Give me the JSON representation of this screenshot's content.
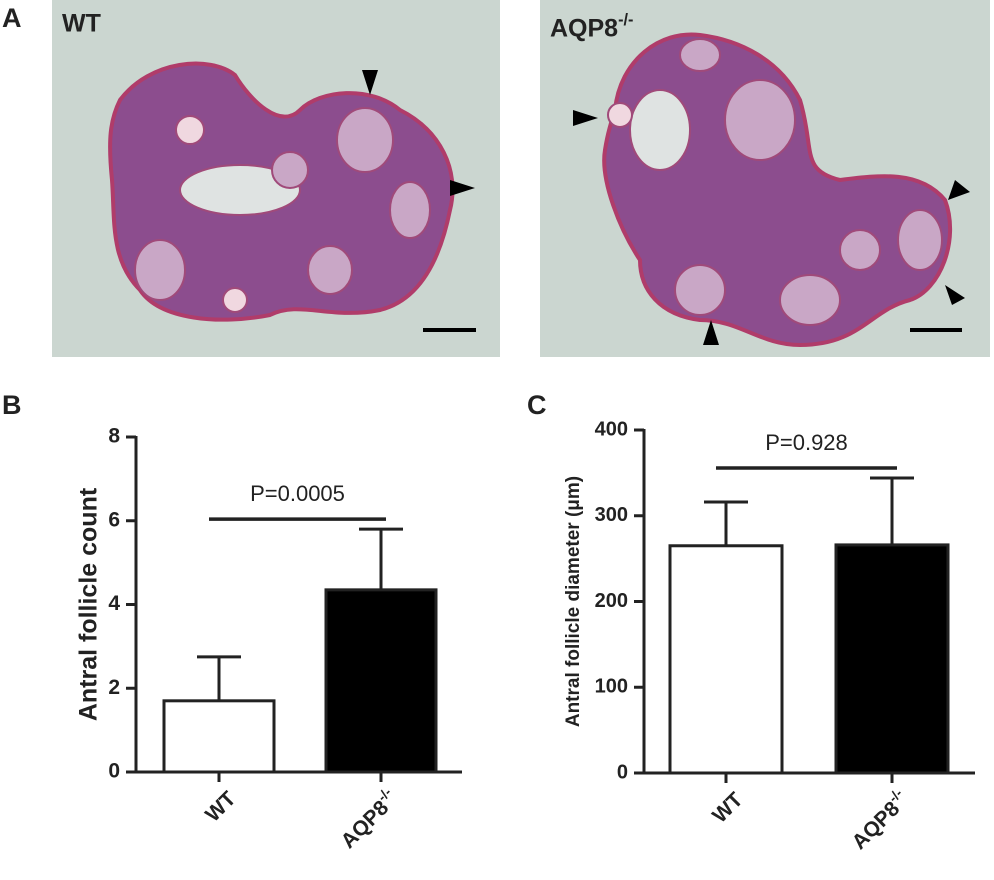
{
  "panel_labels": [
    "A",
    "B",
    "C"
  ],
  "images": [
    {
      "label": "WT"
    },
    {
      "label": "AQP8-/-"
    }
  ],
  "chart_data": [
    {
      "type": "bar",
      "ylabel": "Antral follicle count",
      "categories": [
        "WT",
        "AQP8-/-"
      ],
      "values": [
        1.7,
        4.35
      ],
      "errors": [
        1.05,
        1.45
      ],
      "colors": [
        "#ffffff",
        "#000000"
      ],
      "ylim": [
        0,
        8
      ],
      "yticks": [
        0,
        2,
        4,
        6,
        8
      ],
      "annotation": "P=0.0005"
    },
    {
      "type": "bar",
      "ylabel": "Antral follicle diameter (μm)",
      "categories": [
        "WT",
        "AQP8-/-"
      ],
      "values": [
        265,
        266
      ],
      "errors": [
        51,
        78
      ],
      "colors": [
        "#ffffff",
        "#000000"
      ],
      "ylim": [
        0,
        400
      ],
      "yticks": [
        0,
        100,
        200,
        300,
        400
      ],
      "annotation": "P=0.928"
    }
  ]
}
